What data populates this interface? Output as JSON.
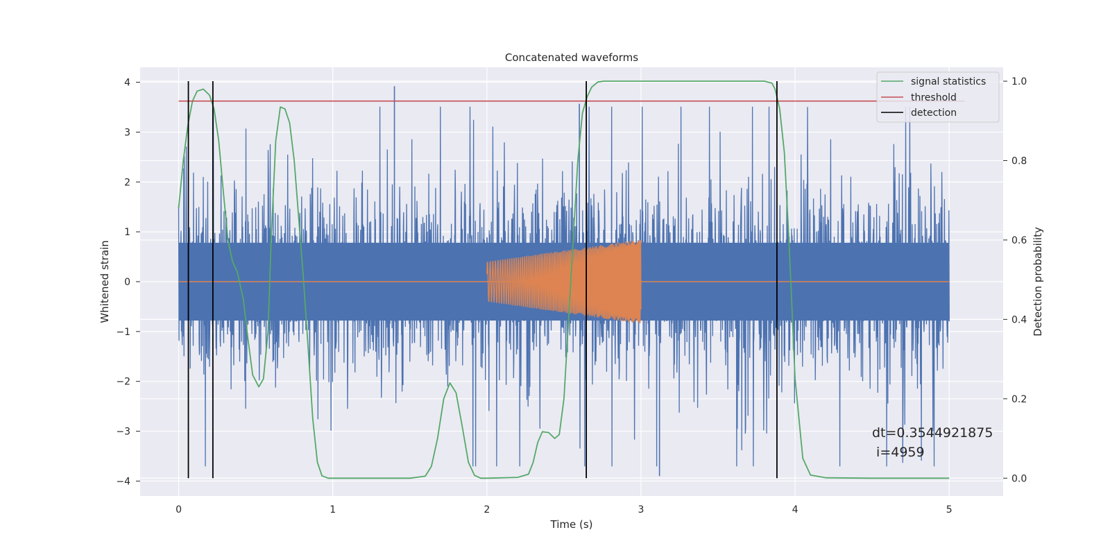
{
  "chart_data": {
    "type": "line",
    "title": "Concatenated waveforms",
    "xlabel": "Time (s)",
    "ylabel_left": "Whitened strain",
    "ylabel_right": "Detection probability",
    "xlim": [
      -0.25,
      5.35
    ],
    "ylim_left": [
      -4.3,
      4.3
    ],
    "ylim_right": [
      -0.045,
      1.035
    ],
    "x_ticks": [
      0,
      1,
      2,
      3,
      4,
      5
    ],
    "y_left_ticks": [
      -4,
      -3,
      -2,
      -1,
      0,
      1,
      2,
      3,
      4
    ],
    "y_right_ticks": [
      0.0,
      0.2,
      0.4,
      0.6,
      0.8,
      1.0
    ],
    "grid": true,
    "legend_position": "top-right",
    "colors": {
      "background": "#eaeaf2",
      "grid": "#ffffff",
      "noise": "#4c72b0",
      "waveform": "#dd8452",
      "statistics": "#55a868",
      "threshold": "#c44e52",
      "detection": "#000000"
    },
    "series": [
      {
        "name": "",
        "axis": "left",
        "kind": "whitened strain noise",
        "x_range": [
          0,
          5
        ],
        "core_amplitude": 0.78,
        "peak_max": 3.9,
        "peak_min": -3.9,
        "highlighted_peaks": [
          [
            1.4,
            3.92
          ],
          [
            2.6,
            3.57
          ],
          [
            3.12,
            -3.9
          ]
        ]
      },
      {
        "name": "",
        "axis": "left",
        "kind": "injected chirp waveform",
        "x": [
          0,
          2.0,
          2.0,
          3.0,
          3.0,
          5.0
        ],
        "envelope_start": [
          2.0,
          0.4
        ],
        "envelope_end": [
          3.0,
          0.85
        ]
      },
      {
        "name": "signal statistics",
        "axis": "right",
        "x": [
          0,
          0.03,
          0.06,
          0.09,
          0.12,
          0.16,
          0.2,
          0.23,
          0.26,
          0.29,
          0.32,
          0.35,
          0.38,
          0.42,
          0.45,
          0.48,
          0.52,
          0.55,
          0.58,
          0.6,
          0.63,
          0.66,
          0.69,
          0.72,
          0.75,
          0.78,
          0.81,
          0.84,
          0.87,
          0.9,
          0.93,
          0.97,
          1.0,
          1.5,
          1.6,
          1.64,
          1.68,
          1.72,
          1.76,
          1.8,
          1.84,
          1.88,
          1.92,
          1.96,
          2.0,
          2.2,
          2.27,
          2.3,
          2.33,
          2.36,
          2.4,
          2.44,
          2.47,
          2.5,
          2.53,
          2.56,
          2.59,
          2.62,
          2.65,
          2.68,
          2.72,
          2.76,
          2.85,
          3.0,
          3.5,
          3.8,
          3.85,
          3.87,
          3.9,
          3.93,
          3.96,
          4.0,
          4.05,
          4.1,
          4.2,
          4.5,
          5.0
        ],
        "y": [
          0.68,
          0.8,
          0.89,
          0.95,
          0.975,
          0.98,
          0.965,
          0.93,
          0.85,
          0.72,
          0.6,
          0.545,
          0.52,
          0.45,
          0.35,
          0.26,
          0.23,
          0.25,
          0.37,
          0.6,
          0.85,
          0.935,
          0.93,
          0.895,
          0.8,
          0.65,
          0.5,
          0.33,
          0.15,
          0.04,
          0.006,
          0.0,
          0.0,
          0.0,
          0.005,
          0.03,
          0.1,
          0.2,
          0.24,
          0.215,
          0.13,
          0.04,
          0.007,
          0.0,
          0.0,
          0.002,
          0.01,
          0.04,
          0.09,
          0.117,
          0.115,
          0.1,
          0.11,
          0.2,
          0.4,
          0.6,
          0.8,
          0.92,
          0.96,
          0.985,
          0.998,
          1.0,
          1.0,
          1.0,
          1.0,
          1.0,
          0.995,
          0.98,
          0.93,
          0.82,
          0.6,
          0.25,
          0.05,
          0.008,
          0.001,
          0.0,
          0.0
        ]
      },
      {
        "name": "threshold",
        "axis": "right",
        "x": [
          0,
          5.1
        ],
        "y": [
          0.95,
          0.95
        ]
      },
      {
        "name": "detection",
        "axis": "right",
        "kind": "vertical lines",
        "x": [
          0.063,
          0.222,
          2.645,
          3.882
        ],
        "y_range": [
          0,
          1
        ]
      }
    ],
    "legend": [
      "signal statistics",
      "threshold",
      "detection"
    ],
    "annotations": [
      "dt=0.3544921875",
      " i=4959"
    ]
  }
}
